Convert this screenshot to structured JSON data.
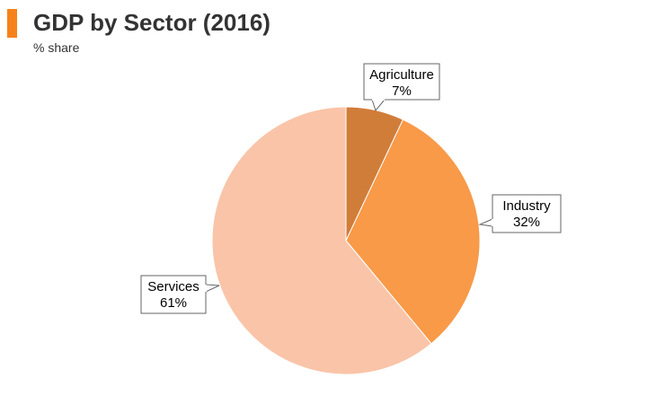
{
  "header": {
    "accent_color": "#f7821b"
  },
  "chart_data": {
    "type": "pie",
    "title": "GDP by Sector (2016)",
    "subtitle": "% share",
    "slices": [
      {
        "label": "Agriculture",
        "value": 7,
        "value_label": "7%",
        "color": "#d17d3a"
      },
      {
        "label": "Industry",
        "value": 32,
        "value_label": "32%",
        "color": "#f89a48"
      },
      {
        "label": "Services",
        "value": 61,
        "value_label": "61%",
        "color": "#fac4a8"
      }
    ],
    "start_angle_deg": 0,
    "direction": "clockwise"
  }
}
